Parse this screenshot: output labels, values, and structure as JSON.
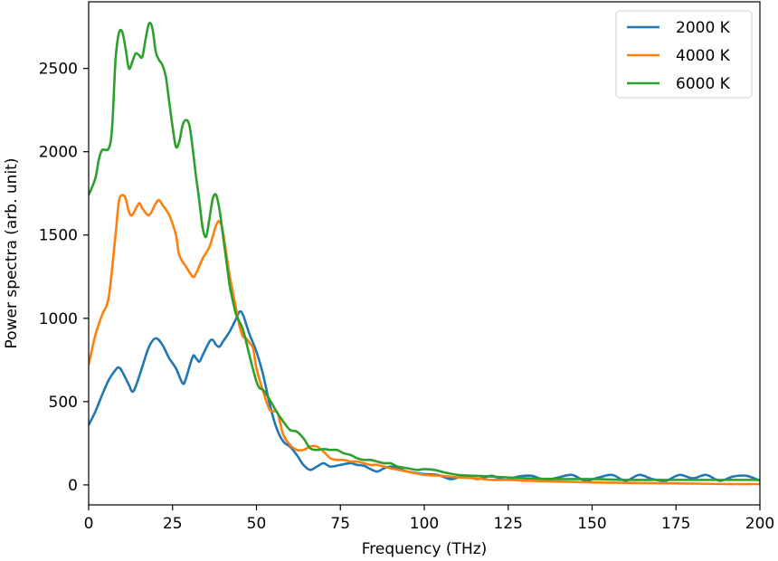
{
  "chart_data": {
    "type": "line",
    "xlabel": "Frequency (THz)",
    "ylabel": "Power spectra (arb. unit)",
    "xlim": [
      0,
      200
    ],
    "ylim": [
      -120,
      2900
    ],
    "xticks": [
      0,
      25,
      50,
      75,
      100,
      125,
      150,
      175,
      200
    ],
    "yticks": [
      0,
      500,
      1000,
      1500,
      2000,
      2500
    ],
    "xtick_labels": [
      "0",
      "25",
      "50",
      "75",
      "100",
      "125",
      "150",
      "175",
      "200"
    ],
    "ytick_labels": [
      "0",
      "500",
      "1000",
      "1500",
      "2000",
      "2500"
    ],
    "grid": false,
    "legend_position": "top-right",
    "series": [
      {
        "name": "2000 K",
        "color": "#1f77b4",
        "points": [
          [
            0,
            360
          ],
          [
            2,
            440
          ],
          [
            4,
            540
          ],
          [
            6,
            630
          ],
          [
            8,
            690
          ],
          [
            9,
            705
          ],
          [
            10,
            680
          ],
          [
            12,
            600
          ],
          [
            13,
            560
          ],
          [
            14,
            590
          ],
          [
            16,
            710
          ],
          [
            18,
            830
          ],
          [
            20,
            880
          ],
          [
            22,
            840
          ],
          [
            24,
            760
          ],
          [
            26,
            700
          ],
          [
            28,
            610
          ],
          [
            29,
            640
          ],
          [
            31,
            770
          ],
          [
            32,
            760
          ],
          [
            33,
            740
          ],
          [
            34,
            780
          ],
          [
            36,
            860
          ],
          [
            37,
            870
          ],
          [
            38,
            840
          ],
          [
            39,
            830
          ],
          [
            40,
            860
          ],
          [
            42,
            920
          ],
          [
            44,
            1000
          ],
          [
            45,
            1040
          ],
          [
            46,
            1020
          ],
          [
            48,
            900
          ],
          [
            50,
            800
          ],
          [
            52,
            660
          ],
          [
            54,
            480
          ],
          [
            56,
            340
          ],
          [
            58,
            260
          ],
          [
            60,
            230
          ],
          [
            62,
            180
          ],
          [
            64,
            120
          ],
          [
            66,
            90
          ],
          [
            68,
            110
          ],
          [
            70,
            130
          ],
          [
            72,
            110
          ],
          [
            75,
            120
          ],
          [
            78,
            130
          ],
          [
            80,
            120
          ],
          [
            82,
            115
          ],
          [
            84,
            95
          ],
          [
            86,
            80
          ],
          [
            88,
            100
          ],
          [
            90,
            110
          ],
          [
            92,
            100
          ],
          [
            95,
            80
          ],
          [
            98,
            70
          ],
          [
            100,
            65
          ],
          [
            104,
            60
          ],
          [
            108,
            35
          ],
          [
            112,
            55
          ],
          [
            116,
            35
          ],
          [
            120,
            55
          ],
          [
            124,
            30
          ],
          [
            128,
            50
          ],
          [
            132,
            55
          ],
          [
            136,
            30
          ],
          [
            140,
            45
          ],
          [
            144,
            60
          ],
          [
            148,
            25
          ],
          [
            152,
            45
          ],
          [
            156,
            60
          ],
          [
            160,
            25
          ],
          [
            164,
            60
          ],
          [
            168,
            35
          ],
          [
            172,
            25
          ],
          [
            176,
            60
          ],
          [
            180,
            40
          ],
          [
            184,
            60
          ],
          [
            188,
            25
          ],
          [
            192,
            50
          ],
          [
            196,
            55
          ],
          [
            200,
            25
          ]
        ]
      },
      {
        "name": "4000 K",
        "color": "#ff7f0e",
        "points": [
          [
            0,
            720
          ],
          [
            2,
            900
          ],
          [
            4,
            1020
          ],
          [
            6,
            1130
          ],
          [
            8,
            1500
          ],
          [
            9,
            1700
          ],
          [
            10,
            1740
          ],
          [
            11,
            1720
          ],
          [
            12,
            1640
          ],
          [
            13,
            1620
          ],
          [
            15,
            1690
          ],
          [
            16,
            1660
          ],
          [
            18,
            1620
          ],
          [
            20,
            1690
          ],
          [
            21,
            1710
          ],
          [
            22,
            1680
          ],
          [
            24,
            1620
          ],
          [
            26,
            1500
          ],
          [
            27,
            1380
          ],
          [
            29,
            1310
          ],
          [
            31,
            1250
          ],
          [
            32,
            1270
          ],
          [
            34,
            1360
          ],
          [
            36,
            1430
          ],
          [
            38,
            1560
          ],
          [
            39,
            1580
          ],
          [
            40,
            1520
          ],
          [
            42,
            1260
          ],
          [
            44,
            1050
          ],
          [
            45,
            950
          ],
          [
            46,
            890
          ],
          [
            47,
            880
          ],
          [
            48,
            850
          ],
          [
            49,
            820
          ],
          [
            50,
            700
          ],
          [
            52,
            560
          ],
          [
            54,
            450
          ],
          [
            56,
            440
          ],
          [
            57,
            380
          ],
          [
            58,
            300
          ],
          [
            60,
            240
          ],
          [
            62,
            210
          ],
          [
            64,
            210
          ],
          [
            66,
            230
          ],
          [
            68,
            230
          ],
          [
            70,
            200
          ],
          [
            72,
            160
          ],
          [
            74,
            150
          ],
          [
            76,
            150
          ],
          [
            78,
            140
          ],
          [
            80,
            140
          ],
          [
            82,
            130
          ],
          [
            84,
            120
          ],
          [
            86,
            120
          ],
          [
            88,
            110
          ],
          [
            90,
            100
          ],
          [
            95,
            80
          ],
          [
            100,
            60
          ],
          [
            105,
            55
          ],
          [
            110,
            45
          ],
          [
            115,
            40
          ],
          [
            120,
            30
          ],
          [
            125,
            30
          ],
          [
            130,
            25
          ],
          [
            140,
            20
          ],
          [
            150,
            15
          ],
          [
            160,
            12
          ],
          [
            170,
            10
          ],
          [
            180,
            8
          ],
          [
            190,
            5
          ],
          [
            200,
            5
          ]
        ]
      },
      {
        "name": "6000 K",
        "color": "#2ca02c",
        "points": [
          [
            0,
            1740
          ],
          [
            2,
            1840
          ],
          [
            3,
            1950
          ],
          [
            4,
            2010
          ],
          [
            6,
            2020
          ],
          [
            7,
            2150
          ],
          [
            8,
            2550
          ],
          [
            9,
            2710
          ],
          [
            10,
            2720
          ],
          [
            11,
            2620
          ],
          [
            12,
            2500
          ],
          [
            13,
            2540
          ],
          [
            14,
            2590
          ],
          [
            15,
            2580
          ],
          [
            16,
            2570
          ],
          [
            17,
            2680
          ],
          [
            18,
            2770
          ],
          [
            19,
            2740
          ],
          [
            20,
            2600
          ],
          [
            21,
            2550
          ],
          [
            22,
            2520
          ],
          [
            23,
            2450
          ],
          [
            24,
            2300
          ],
          [
            25,
            2150
          ],
          [
            26,
            2030
          ],
          [
            27,
            2060
          ],
          [
            28,
            2160
          ],
          [
            29,
            2190
          ],
          [
            30,
            2160
          ],
          [
            31,
            2020
          ],
          [
            32,
            1850
          ],
          [
            33,
            1700
          ],
          [
            34,
            1540
          ],
          [
            35,
            1490
          ],
          [
            36,
            1600
          ],
          [
            37,
            1720
          ],
          [
            38,
            1740
          ],
          [
            39,
            1650
          ],
          [
            40,
            1500
          ],
          [
            41,
            1350
          ],
          [
            42,
            1200
          ],
          [
            43,
            1100
          ],
          [
            44,
            1020
          ],
          [
            46,
            930
          ],
          [
            48,
            770
          ],
          [
            50,
            620
          ],
          [
            51,
            580
          ],
          [
            52,
            570
          ],
          [
            54,
            510
          ],
          [
            56,
            440
          ],
          [
            58,
            380
          ],
          [
            60,
            330
          ],
          [
            62,
            320
          ],
          [
            64,
            280
          ],
          [
            66,
            220
          ],
          [
            68,
            210
          ],
          [
            70,
            215
          ],
          [
            72,
            210
          ],
          [
            74,
            210
          ],
          [
            76,
            190
          ],
          [
            78,
            180
          ],
          [
            80,
            160
          ],
          [
            82,
            150
          ],
          [
            84,
            150
          ],
          [
            86,
            140
          ],
          [
            88,
            130
          ],
          [
            90,
            130
          ],
          [
            92,
            110
          ],
          [
            95,
            100
          ],
          [
            98,
            90
          ],
          [
            100,
            95
          ],
          [
            103,
            90
          ],
          [
            106,
            75
          ],
          [
            110,
            60
          ],
          [
            115,
            55
          ],
          [
            120,
            50
          ],
          [
            125,
            45
          ],
          [
            130,
            40
          ],
          [
            140,
            35
          ],
          [
            150,
            35
          ],
          [
            160,
            30
          ],
          [
            170,
            30
          ],
          [
            180,
            30
          ],
          [
            190,
            30
          ],
          [
            200,
            30
          ]
        ]
      }
    ]
  }
}
